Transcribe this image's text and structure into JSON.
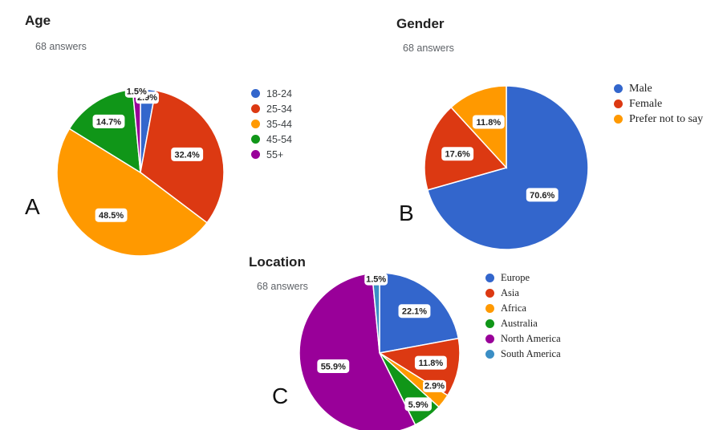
{
  "chart_data": [
    {
      "type": "pie",
      "panel": "A",
      "title": "Age",
      "subtitle": "68 answers",
      "categories": [
        "18-24",
        "25-34",
        "35-44",
        "45-54",
        "55+"
      ],
      "values": [
        2.9,
        32.4,
        48.5,
        14.7,
        1.5
      ],
      "labels": [
        "2.9%",
        "32.4%",
        "48.5%",
        "14.7%",
        "1.5%"
      ],
      "colors": [
        "#3366cc",
        "#dc3912",
        "#ff9900",
        "#109618",
        "#990099"
      ],
      "legend_position": "right"
    },
    {
      "type": "pie",
      "panel": "B",
      "title": "Gender",
      "subtitle": "68 answers",
      "categories": [
        "Male",
        "Female",
        "Prefer not to say"
      ],
      "values": [
        70.6,
        17.6,
        11.8
      ],
      "labels": [
        "70.6%",
        "17.6%",
        "11.8%"
      ],
      "colors": [
        "#3366cc",
        "#dc3912",
        "#ff9900"
      ],
      "legend_position": "right"
    },
    {
      "type": "pie",
      "panel": "C",
      "title": "Location",
      "subtitle": "68 answers",
      "categories": [
        "Europe",
        "Asia",
        "Africa",
        "Australia",
        "North America",
        "South America"
      ],
      "values": [
        22.1,
        11.8,
        2.9,
        5.9,
        55.9,
        1.5
      ],
      "labels": [
        "22.1%",
        "11.8%",
        "2.9%",
        "5.9%",
        "55.9%",
        "1.5%"
      ],
      "colors": [
        "#3366cc",
        "#dc3912",
        "#ff9900",
        "#109618",
        "#990099",
        "#3b8ec5"
      ],
      "legend_position": "right"
    }
  ]
}
